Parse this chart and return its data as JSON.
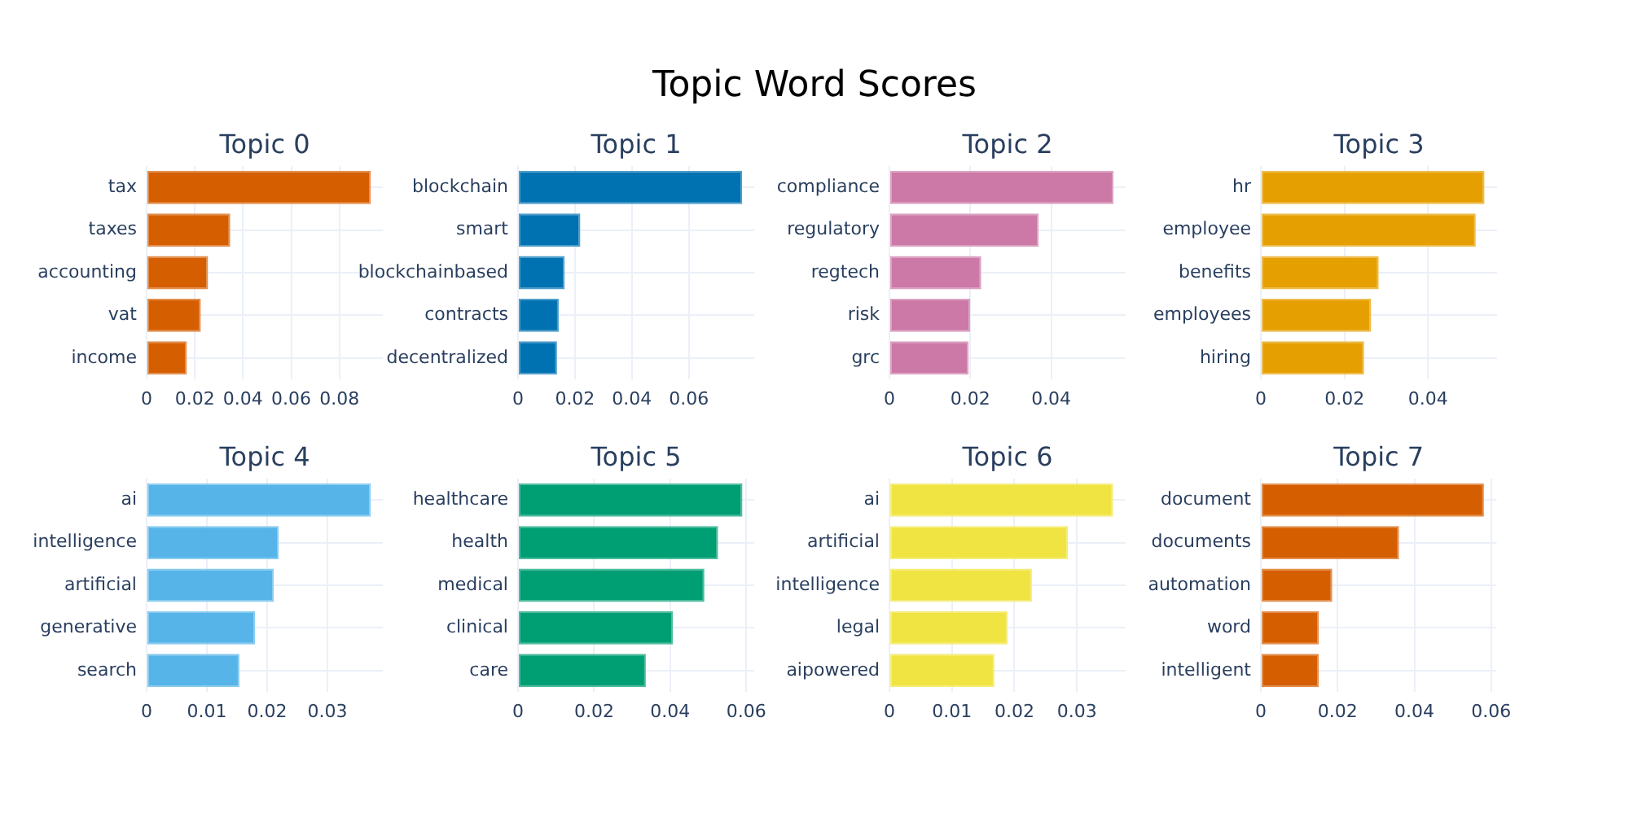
{
  "chart_data": [
    {
      "type": "other",
      "title": "Topic Word Scores"
    },
    {
      "type": "bar",
      "orientation": "horizontal",
      "title": "Topic 0",
      "categories": [
        "tax",
        "taxes",
        "accounting",
        "vat",
        "income"
      ],
      "values": [
        0.093,
        0.0347,
        0.0255,
        0.0225,
        0.0167
      ],
      "color": "#d55e00",
      "xlim": [
        0,
        0.098
      ],
      "xticks": [
        0,
        0.02,
        0.04,
        0.06,
        0.08
      ],
      "grid": true
    },
    {
      "type": "bar",
      "orientation": "horizontal",
      "title": "Topic 1",
      "categories": [
        "blockchain",
        "smart",
        "blockchainbased",
        "contracts",
        "decentralized"
      ],
      "values": [
        0.0787,
        0.0219,
        0.0164,
        0.0143,
        0.0137
      ],
      "color": "#0072b2",
      "xlim": [
        0,
        0.083
      ],
      "xticks": [
        0,
        0.02,
        0.04,
        0.06
      ],
      "grid": true
    },
    {
      "type": "bar",
      "orientation": "horizontal",
      "title": "Topic 2",
      "categories": [
        "compliance",
        "regulatory",
        "regtech",
        "risk",
        "grc"
      ],
      "values": [
        0.0554,
        0.0369,
        0.0227,
        0.02,
        0.0196
      ],
      "color": "#cc79a7",
      "xlim": [
        0,
        0.0584
      ],
      "xticks": [
        0,
        0.02,
        0.04
      ],
      "grid": true
    },
    {
      "type": "bar",
      "orientation": "horizontal",
      "title": "Topic 3",
      "categories": [
        "hr",
        "employee",
        "benefits",
        "employees",
        "hiring"
      ],
      "values": [
        0.0535,
        0.0514,
        0.0282,
        0.0264,
        0.0247
      ],
      "color": "#e69f00",
      "xlim": [
        0,
        0.0565
      ],
      "xticks": [
        0,
        0.02,
        0.04
      ],
      "grid": true
    },
    {
      "type": "bar",
      "orientation": "horizontal",
      "title": "Topic 4",
      "categories": [
        "ai",
        "intelligence",
        "artificial",
        "generative",
        "search"
      ],
      "values": [
        0.0372,
        0.0219,
        0.0211,
        0.018,
        0.0154
      ],
      "color": "#56b4e9",
      "xlim": [
        0,
        0.0392
      ],
      "xticks": [
        0,
        0.01,
        0.02,
        0.03
      ],
      "grid": true
    },
    {
      "type": "bar",
      "orientation": "horizontal",
      "title": "Topic 5",
      "categories": [
        "healthcare",
        "health",
        "medical",
        "clinical",
        "care"
      ],
      "values": [
        0.059,
        0.0526,
        0.049,
        0.0407,
        0.0336
      ],
      "color": "#009e73",
      "xlim": [
        0,
        0.0621
      ],
      "xticks": [
        0,
        0.02,
        0.04,
        0.06
      ],
      "grid": true
    },
    {
      "type": "bar",
      "orientation": "horizontal",
      "title": "Topic 6",
      "categories": [
        "ai",
        "artificial",
        "intelligence",
        "legal",
        "aipowered"
      ],
      "values": [
        0.0358,
        0.0286,
        0.0228,
        0.0189,
        0.0168
      ],
      "color": "#f0e442",
      "xlim": [
        0,
        0.0378
      ],
      "xticks": [
        0,
        0.01,
        0.02,
        0.03
      ],
      "grid": true
    },
    {
      "type": "bar",
      "orientation": "horizontal",
      "title": "Topic 7",
      "categories": [
        "document",
        "documents",
        "automation",
        "word",
        "intelligent"
      ],
      "values": [
        0.0581,
        0.036,
        0.0186,
        0.0151,
        0.0151
      ],
      "color": "#d55e00",
      "xlim": [
        0,
        0.0614
      ],
      "xticks": [
        0,
        0.02,
        0.04,
        0.06
      ],
      "grid": true
    }
  ]
}
